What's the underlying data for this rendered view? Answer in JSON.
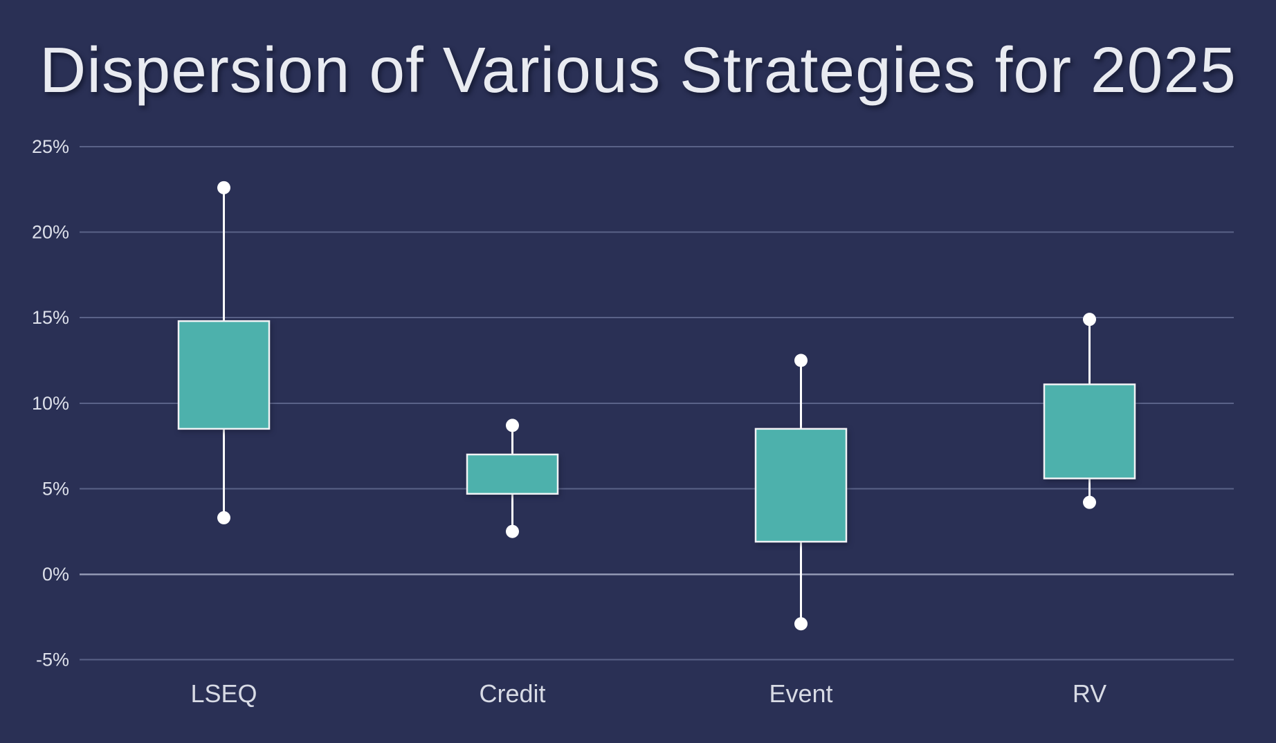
{
  "title": "Dispersion of Various Strategies for 2025",
  "colors": {
    "background": "#2a3055",
    "title_text": "#e9ebf1",
    "axis_text": "#dde0ea",
    "category_text": "#d8dbe5",
    "gridline": "#5a6288",
    "zero_line": "#9298b4",
    "box_fill": "#4db1ac",
    "box_border": "#f2f3f6",
    "whisker": "#ffffff",
    "dot": "#ffffff"
  },
  "chart_data": {
    "type": "boxplot",
    "title": "Dispersion of Various Strategies for 2025",
    "categories": [
      "LSEQ",
      "Credit",
      "Event",
      "RV"
    ],
    "series": [
      {
        "name": "LSEQ",
        "high": 22.6,
        "box_top": 14.8,
        "box_bottom": 8.5,
        "low": 3.3
      },
      {
        "name": "Credit",
        "high": 8.7,
        "box_top": 7.0,
        "box_bottom": 4.7,
        "low": 2.5
      },
      {
        "name": "Event",
        "high": 12.5,
        "box_top": 8.5,
        "box_bottom": 1.9,
        "low": -2.9
      },
      {
        "name": "RV",
        "high": 14.9,
        "box_top": 11.1,
        "box_bottom": 5.6,
        "low": 4.2
      }
    ],
    "yticks": [
      {
        "label": "25%",
        "value": 25
      },
      {
        "label": "20%",
        "value": 20
      },
      {
        "label": "15%",
        "value": 15
      },
      {
        "label": "10%",
        "value": 10
      },
      {
        "label": "5%",
        "value": 5
      },
      {
        "label": "0%",
        "value": 0
      },
      {
        "label": "-5%",
        "value": -5
      }
    ],
    "ylim": [
      -5,
      25
    ],
    "grid": true,
    "legend": false,
    "xlabel": "",
    "ylabel": ""
  }
}
